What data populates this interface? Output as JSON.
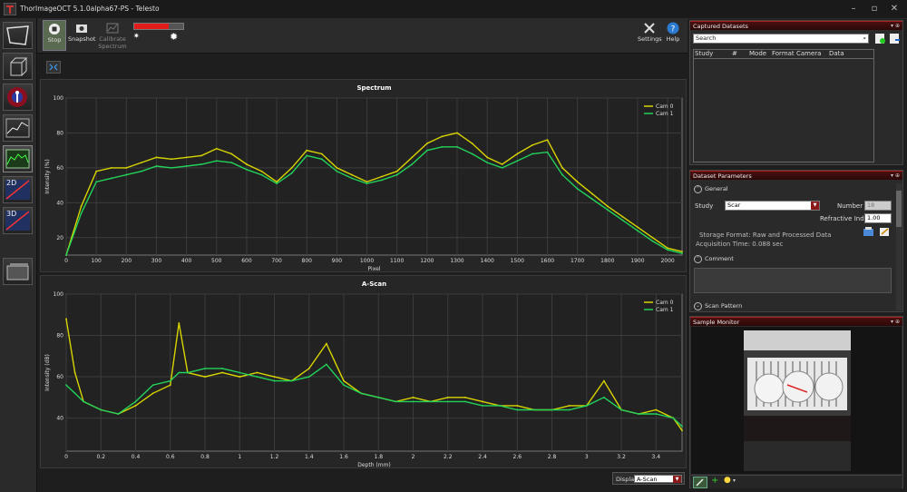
{
  "window": {
    "title": "ThorImageOCT 5.1.0alpha67-PS - Telesto"
  },
  "toolbar": {
    "stop_label": "Stop",
    "snapshot_label": "Snapshot",
    "calibrate_label_1": "Calibrate",
    "calibrate_label_2": "Spectrum",
    "settings_label": "Settings",
    "help_label": "Help",
    "level_meter": 0.7
  },
  "left_modes": [
    "2D",
    "3D"
  ],
  "charts": {
    "spectrum": {
      "title": "Spectrum"
    },
    "ascan": {
      "title": "A-Scan"
    }
  },
  "display": {
    "label": "Display",
    "value": "A-Scan"
  },
  "colors": {
    "cam0": "#d8d400",
    "cam1": "#22d25a",
    "accent": "#a01818"
  },
  "chart_data": [
    {
      "type": "line",
      "title": "Spectrum",
      "xlabel": "Pixel",
      "ylabel": "Intensity (%)",
      "xlim": [
        0,
        2048
      ],
      "ylim": [
        10,
        100
      ],
      "x_ticks": [
        0,
        100,
        200,
        300,
        400,
        500,
        600,
        700,
        800,
        900,
        1000,
        1100,
        1200,
        1300,
        1400,
        1500,
        1600,
        1700,
        1800,
        1900,
        2000
      ],
      "y_ticks": [
        20,
        40,
        60,
        80,
        100
      ],
      "legend": "top-right",
      "x": [
        0,
        50,
        100,
        150,
        200,
        250,
        300,
        350,
        400,
        450,
        500,
        550,
        600,
        650,
        700,
        750,
        800,
        850,
        900,
        950,
        1000,
        1050,
        1100,
        1150,
        1200,
        1250,
        1300,
        1350,
        1400,
        1450,
        1500,
        1550,
        1600,
        1650,
        1700,
        1750,
        1800,
        1850,
        1900,
        1950,
        2000,
        2048
      ],
      "series": [
        {
          "name": "Cam 0",
          "values": [
            10,
            38,
            58,
            60,
            60,
            63,
            66,
            65,
            66,
            67,
            71,
            68,
            62,
            58,
            52,
            60,
            70,
            68,
            60,
            56,
            52,
            55,
            58,
            66,
            74,
            78,
            80,
            74,
            66,
            62,
            68,
            73,
            76,
            60,
            52,
            45,
            38,
            32,
            26,
            20,
            14,
            12
          ]
        },
        {
          "name": "Cam 1",
          "values": [
            10,
            34,
            52,
            54,
            56,
            58,
            61,
            60,
            61,
            62,
            64,
            63,
            59,
            56,
            51,
            57,
            67,
            65,
            58,
            54,
            51,
            53,
            56,
            62,
            70,
            72,
            72,
            68,
            63,
            60,
            64,
            68,
            69,
            56,
            48,
            42,
            36,
            30,
            24,
            18,
            13,
            11
          ]
        }
      ]
    },
    {
      "type": "line",
      "title": "A-Scan",
      "xlabel": "Depth (mm)",
      "ylabel": "Intensity (dB)",
      "xlim": [
        0,
        3.55
      ],
      "ylim": [
        24,
        100
      ],
      "x_ticks": [
        0,
        0.2,
        0.4,
        0.6,
        0.8,
        1,
        1.2,
        1.4,
        1.6,
        1.8,
        2,
        2.2,
        2.4,
        2.6,
        2.8,
        3,
        3.2,
        3.4
      ],
      "y_ticks": [
        40,
        60,
        80,
        100
      ],
      "legend": "top-right",
      "x": [
        0,
        0.05,
        0.1,
        0.2,
        0.3,
        0.4,
        0.5,
        0.6,
        0.65,
        0.7,
        0.8,
        0.9,
        1.0,
        1.1,
        1.2,
        1.3,
        1.4,
        1.5,
        1.6,
        1.7,
        1.8,
        1.9,
        2.0,
        2.1,
        2.2,
        2.3,
        2.4,
        2.5,
        2.6,
        2.7,
        2.8,
        2.9,
        3.0,
        3.1,
        3.2,
        3.3,
        3.4,
        3.5,
        3.55
      ],
      "series": [
        {
          "name": "Cam 0",
          "values": [
            88,
            62,
            48,
            44,
            42,
            46,
            52,
            56,
            86,
            62,
            60,
            62,
            60,
            62,
            60,
            58,
            64,
            76,
            58,
            52,
            50,
            48,
            50,
            48,
            50,
            50,
            48,
            46,
            46,
            44,
            44,
            46,
            46,
            58,
            44,
            42,
            44,
            40,
            34
          ]
        },
        {
          "name": "Cam 1",
          "values": [
            56,
            52,
            48,
            44,
            42,
            48,
            56,
            58,
            62,
            62,
            64,
            64,
            62,
            60,
            58,
            58,
            60,
            66,
            56,
            52,
            50,
            48,
            48,
            48,
            48,
            48,
            46,
            46,
            44,
            44,
            44,
            44,
            46,
            50,
            44,
            42,
            42,
            40,
            36
          ]
        }
      ]
    }
  ],
  "captured": {
    "title": "Captured Datasets",
    "search_placeholder": "Search",
    "columns": [
      "Study",
      "#",
      "Mode",
      "Format",
      "Camera",
      "Data"
    ]
  },
  "params": {
    "title": "Dataset Parameters",
    "general": "General",
    "study_label": "Study",
    "study_value": "Scar",
    "number_label": "Number",
    "number_value": "18",
    "ri_label": "Refractive Index",
    "ri_value": "1.00",
    "storage": "Storage Format: Raw and Processed Data",
    "acq": "Acquisition Time: 0.088 sec",
    "comment": "Comment",
    "scan_pattern": "Scan Pattern"
  },
  "monitor": {
    "title": "Sample Monitor"
  }
}
